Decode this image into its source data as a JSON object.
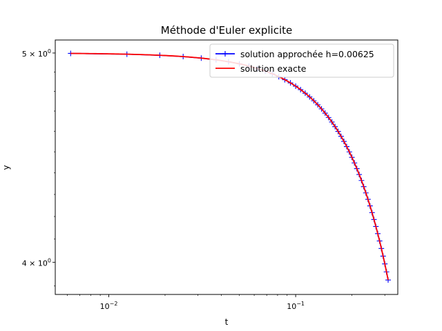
{
  "chart_data": {
    "type": "line",
    "title": "Méthode d'Euler explicite",
    "xlabel": "t",
    "ylabel": "y",
    "x_scale": "log",
    "y_scale": "log",
    "xlim": [
      0.00517,
      0.352
    ],
    "ylim": [
      3.865,
      5.07
    ],
    "x_ticks": [
      {
        "value": 0.01,
        "base": "10",
        "exp": "−2"
      },
      {
        "value": 0.1,
        "base": "10",
        "exp": "−1"
      }
    ],
    "y_ticks": [
      {
        "value": 4.0,
        "mant": "4",
        "base": "10",
        "exp": "0"
      },
      {
        "value": 5.0,
        "mant": "5",
        "base": "10",
        "exp": "0"
      }
    ],
    "legend_position": "top-right",
    "grid": false,
    "series": [
      {
        "name": "solution approchée h=0.00625",
        "color": "#0000ff",
        "marker": "+",
        "h": 0.00625,
        "t_start": 0.00625,
        "t_end": 0.3125,
        "y0": 5.0,
        "k": 0.05
      },
      {
        "name": "solution exacte",
        "color": "#ff0000",
        "marker": "none",
        "t_start": 0.00625,
        "t_end": 0.3125,
        "y0": 5.0,
        "k": 0.05
      }
    ]
  }
}
